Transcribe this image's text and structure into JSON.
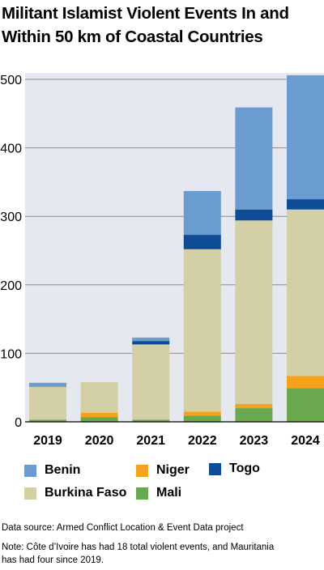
{
  "title_lines": [
    "Militant Islamist Violent Events In and",
    "Within 50 km of Coastal Countries"
  ],
  "chart_data": {
    "type": "bar",
    "stacked": true,
    "title": "Militant Islamist Violent Events In and Within 50 km of Coastal Countries",
    "categories": [
      "2019",
      "2020",
      "2021",
      "2022",
      "2023",
      "2024"
    ],
    "series": [
      {
        "name": "Mali",
        "color": "#6aa84f",
        "values": [
          3,
          7,
          3,
          9,
          20,
          49
        ]
      },
      {
        "name": "Niger",
        "color": "#f7a21b",
        "values": [
          0,
          6,
          0,
          6,
          6,
          18
        ]
      },
      {
        "name": "Burkina Faso",
        "color": "#d3d0a6",
        "values": [
          48,
          45,
          110,
          237,
          268,
          243
        ]
      },
      {
        "name": "Togo",
        "color": "#0e4c96",
        "values": [
          0,
          0,
          5,
          21,
          16,
          15
        ]
      },
      {
        "name": "Benin",
        "color": "#6a9bd1",
        "values": [
          6,
          0,
          5,
          64,
          149,
          181
        ]
      }
    ],
    "ylim": [
      0,
      510
    ],
    "yticks": [
      0,
      100,
      200,
      300,
      400,
      500
    ],
    "grid": true,
    "legend": "bottom"
  },
  "legend_items": [
    {
      "label": "Benin",
      "color": "#6a9bd1"
    },
    {
      "label": "Niger",
      "color": "#f7a21b"
    },
    {
      "label": "Togo",
      "color": "#0e4c96"
    },
    {
      "label": "Burkina Faso",
      "color": "#d3d0a6"
    },
    {
      "label": "Mali",
      "color": "#6aa84f"
    }
  ],
  "source_text": "Data source: Armed Conflict Location & Event Data project",
  "note_lines": [
    "Note: Côte d’Ivoire has had 18 total violent events, and Mauritania",
    "has had four since 2019."
  ],
  "plot_bg": "#e6e8ef"
}
